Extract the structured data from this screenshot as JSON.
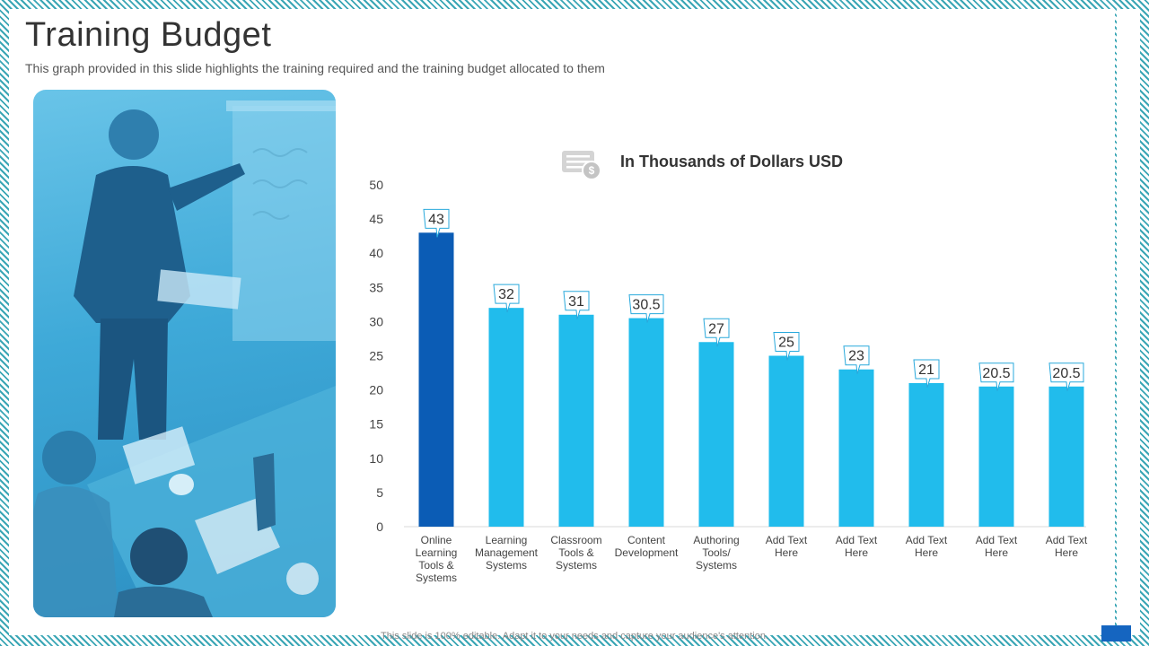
{
  "slide": {
    "title": "Training Budget",
    "subtitle": "This graph provided in this slide highlights the training required and the training budget allocated to them",
    "footer": "This slide is 100% editable. Adapt it to your needs and capture your audience's attention."
  },
  "colors": {
    "highlight_bar": "#0b5cb5",
    "bar": "#21bcec",
    "axis_text": "#444444",
    "corner": "#1565c0"
  },
  "chart_data": {
    "type": "bar",
    "title": "In Thousands of Dollars USD",
    "icon": "money-document-icon",
    "categories": [
      [
        "Online",
        "Learning",
        "Tools &",
        "Systems"
      ],
      [
        "Learning",
        "Management",
        "Systems"
      ],
      [
        "Classroom",
        "Tools &",
        "Systems"
      ],
      [
        "Content",
        "Development"
      ],
      [
        "Authoring",
        "Tools/",
        "Systems"
      ],
      [
        "Add Text",
        "Here"
      ],
      [
        "Add Text",
        "Here"
      ],
      [
        "Add Text",
        "Here"
      ],
      [
        "Add Text",
        "Here"
      ],
      [
        "Add Text",
        "Here"
      ]
    ],
    "values": [
      43,
      32,
      31,
      30.5,
      27,
      25,
      23,
      21,
      20.5,
      20.5
    ],
    "data_labels": [
      "43",
      "32",
      "31",
      "30.5",
      "27",
      "25",
      "23",
      "21",
      "20.5",
      "20.5"
    ],
    "highlight_index": 0,
    "ylim": [
      0,
      50
    ],
    "yticks": [
      0,
      5,
      10,
      15,
      20,
      25,
      30,
      35,
      40,
      45,
      50
    ],
    "xlabel": "",
    "ylabel": "",
    "grid": false
  }
}
